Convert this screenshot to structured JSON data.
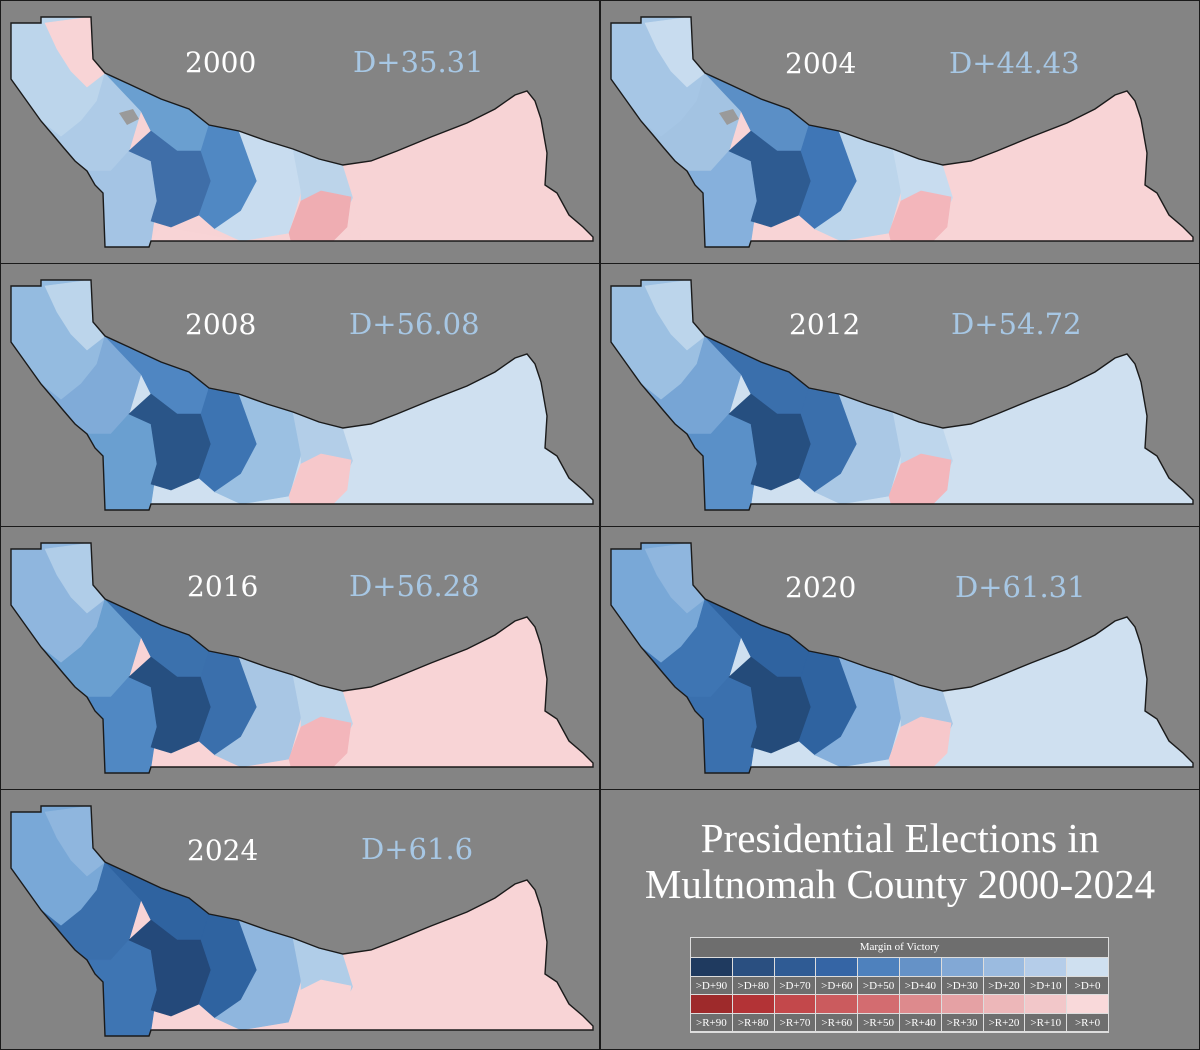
{
  "title": {
    "line1": "Presidential Elections in",
    "line2": "Multnomah County 2000-2024"
  },
  "maps": [
    {
      "year": "2000",
      "margin": "D+35.31",
      "shades": [
        "#bcd5eb",
        "#f8d4d6",
        "#aecbe7",
        "#6a9fd0",
        "#a4c4e4",
        "#3f6ea8",
        "#5088c3",
        "#c8dcef",
        "#bcd4ea",
        "#f7d3d5",
        "#efadb2",
        "#f8d4d6"
      ],
      "gray": true
    },
    {
      "year": "2004",
      "margin": "D+44.43",
      "shades": [
        "#a6c6e5",
        "#c8dcef",
        "#a3c3e2",
        "#5b8fc6",
        "#86b0dc",
        "#2e5b91",
        "#3f76b6",
        "#bcd5eb",
        "#c8dcef",
        "#f8d4d6",
        "#f3b6bb",
        "#f8d4d6"
      ],
      "gray": true
    },
    {
      "year": "2008",
      "margin": "D+56.08",
      "shades": [
        "#94bbe0",
        "#bcd5eb",
        "#80abd8",
        "#4f86c2",
        "#6a9fd0",
        "#2a5588",
        "#3d74b2",
        "#9bc0e2",
        "#b3cee8",
        "#cfe0f0",
        "#f6c8cb",
        "#cfe0f0"
      ],
      "gray": false
    },
    {
      "year": "2012",
      "margin": "D+54.72",
      "shades": [
        "#9cc0e2",
        "#bcd5eb",
        "#77a5d5",
        "#3a6fac",
        "#5a90c8",
        "#264f80",
        "#3a6fac",
        "#aac8e5",
        "#bed6ec",
        "#cfe0f0",
        "#f3b6bb",
        "#cfe0f0"
      ],
      "gray": false
    },
    {
      "year": "2016",
      "margin": "D+56.28",
      "shades": [
        "#8fb6de",
        "#b0cde8",
        "#6a9fd0",
        "#3b71ad",
        "#5088c3",
        "#264f80",
        "#3a6fac",
        "#a8c6e4",
        "#bcd5eb",
        "#f8d4d6",
        "#f3b6bb",
        "#f8d4d6"
      ],
      "gray": false
    },
    {
      "year": "2020",
      "margin": "D+61.31",
      "shades": [
        "#79a8d7",
        "#8fb6de",
        "#3e75b3",
        "#2f63a0",
        "#3a70ae",
        "#244b7a",
        "#2f63a0",
        "#86b0dc",
        "#a8c6e4",
        "#cfe0f0",
        "#f6c8cb",
        "#cfe0f0"
      ],
      "gray": false
    },
    {
      "year": "2024",
      "margin": "D+61.6",
      "shades": [
        "#79a8d7",
        "#8fb6de",
        "#3a6fac",
        "#2f63a0",
        "#3e75b3",
        "#24497a",
        "#2f63a0",
        "#8fb6de",
        "#b0cde8",
        "#f8d4d6",
        "#f8d4d6",
        "#f8d4d6"
      ],
      "gray": false
    }
  ],
  "legend": {
    "header": "Margin of Victory",
    "dem_colors": [
      "#1f3a5f",
      "#2a4f80",
      "#2f5b94",
      "#3565a5",
      "#4e81bd",
      "#6592c7",
      "#82a8d5",
      "#9bbbe0",
      "#b5cde9",
      "#cfe0f0"
    ],
    "rep_colors": [
      "#9e2a2b",
      "#b33336",
      "#c3484b",
      "#cb5b5e",
      "#d36c70",
      "#dd8a8d",
      "#e5a1a4",
      "#edb7b9",
      "#f2c7c9",
      "#f9d9da"
    ],
    "dem_labels": [
      ">D+90",
      ">D+80",
      ">D+70",
      ">D+60",
      ">D+50",
      ">D+40",
      ">D+30",
      ">D+20",
      ">D+10",
      ">D+0"
    ],
    "rep_labels": [
      ">R+90",
      ">R+80",
      ">R+70",
      ">R+60",
      ">R+50",
      ">R+40",
      ">R+30",
      ">R+20",
      ">R+10",
      ">R+0"
    ]
  }
}
